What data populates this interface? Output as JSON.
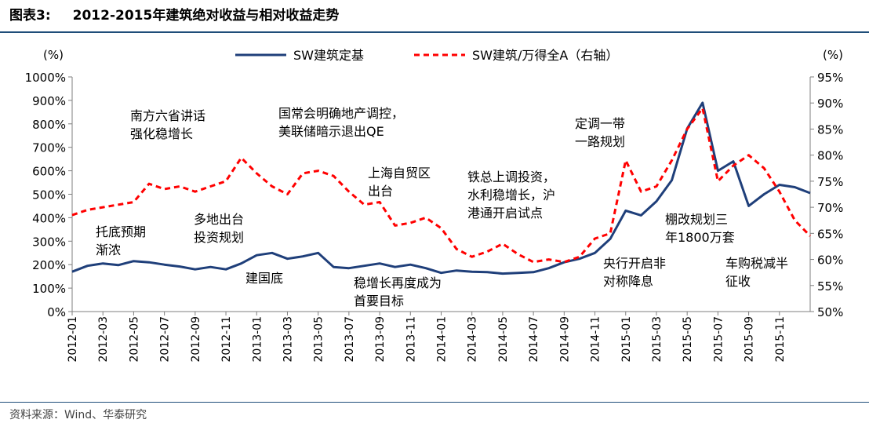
{
  "header": {
    "figure_no": "图表3:",
    "title": "2012-2015年建筑绝对收益与相对收益走势"
  },
  "footer": {
    "source": "资料来源：Wind、华泰研究"
  },
  "colors": {
    "abs_line": "#1f3f7a",
    "rel_line": "#ff0000",
    "rule": "#1f4e79"
  },
  "chart_data": {
    "type": "line",
    "left_unit": "(%)",
    "right_unit": "(%)",
    "left_axis": {
      "ticks": [
        "0%",
        "100%",
        "200%",
        "300%",
        "400%",
        "500%",
        "600%",
        "700%",
        "800%",
        "900%",
        "1000%"
      ],
      "min": 0,
      "max": 1000
    },
    "right_axis": {
      "ticks": [
        "50%",
        "55%",
        "60%",
        "65%",
        "70%",
        "75%",
        "80%",
        "85%",
        "90%",
        "95%"
      ],
      "min": 50,
      "max": 95
    },
    "x_ticks": [
      "2012-01",
      "2012-03",
      "2012-05",
      "2012-07",
      "2012-09",
      "2012-11",
      "2013-01",
      "2013-03",
      "2013-05",
      "2013-07",
      "2013-09",
      "2013-11",
      "2014-01",
      "2014-03",
      "2014-05",
      "2014-07",
      "2014-09",
      "2014-11",
      "2015-01",
      "2015-03",
      "2015-05",
      "2015-07",
      "2015-09",
      "2015-11"
    ],
    "x_range": [
      "2012-01",
      "2016-01"
    ],
    "grid": false,
    "legend_position": "top-center",
    "series": [
      {
        "name": "SW建筑定基",
        "axis": "left",
        "style": "solid",
        "points": [
          [
            "2012-01",
            170
          ],
          [
            "2012-02",
            195
          ],
          [
            "2012-03",
            205
          ],
          [
            "2012-04",
            198
          ],
          [
            "2012-05",
            215
          ],
          [
            "2012-06",
            210
          ],
          [
            "2012-07",
            200
          ],
          [
            "2012-08",
            192
          ],
          [
            "2012-09",
            180
          ],
          [
            "2012-10",
            190
          ],
          [
            "2012-11",
            180
          ],
          [
            "2012-12",
            205
          ],
          [
            "2013-01",
            240
          ],
          [
            "2013-02",
            250
          ],
          [
            "2013-03",
            225
          ],
          [
            "2013-04",
            235
          ],
          [
            "2013-05",
            250
          ],
          [
            "2013-06",
            190
          ],
          [
            "2013-07",
            185
          ],
          [
            "2013-08",
            195
          ],
          [
            "2013-09",
            205
          ],
          [
            "2013-10",
            190
          ],
          [
            "2013-11",
            200
          ],
          [
            "2013-12",
            185
          ],
          [
            "2014-01",
            165
          ],
          [
            "2014-02",
            175
          ],
          [
            "2014-03",
            170
          ],
          [
            "2014-04",
            168
          ],
          [
            "2014-05",
            162
          ],
          [
            "2014-06",
            165
          ],
          [
            "2014-07",
            168
          ],
          [
            "2014-08",
            185
          ],
          [
            "2014-09",
            210
          ],
          [
            "2014-10",
            225
          ],
          [
            "2014-11",
            250
          ],
          [
            "2014-12",
            310
          ],
          [
            "2015-01",
            430
          ],
          [
            "2015-02",
            410
          ],
          [
            "2015-03",
            470
          ],
          [
            "2015-04",
            560
          ],
          [
            "2015-05",
            780
          ],
          [
            "2015-06",
            890
          ],
          [
            "2015-07",
            600
          ],
          [
            "2015-08",
            640
          ],
          [
            "2015-09",
            450
          ],
          [
            "2015-10",
            500
          ],
          [
            "2015-11",
            540
          ],
          [
            "2015-12",
            530
          ],
          [
            "2016-01",
            505
          ]
        ]
      },
      {
        "name": "SW建筑/万得全A（右轴）",
        "axis": "right",
        "style": "dashed",
        "points": [
          [
            "2012-01",
            68.5
          ],
          [
            "2012-02",
            69.5
          ],
          [
            "2012-03",
            70.0
          ],
          [
            "2012-04",
            70.5
          ],
          [
            "2012-05",
            71.0
          ],
          [
            "2012-06",
            74.5
          ],
          [
            "2012-07",
            73.5
          ],
          [
            "2012-08",
            74.0
          ],
          [
            "2012-09",
            73.0
          ],
          [
            "2012-10",
            74.0
          ],
          [
            "2012-11",
            75.0
          ],
          [
            "2012-12",
            79.5
          ],
          [
            "2013-01",
            76.5
          ],
          [
            "2013-02",
            74.0
          ],
          [
            "2013-03",
            72.5
          ],
          [
            "2013-04",
            76.5
          ],
          [
            "2013-05",
            77.0
          ],
          [
            "2013-06",
            76.0
          ],
          [
            "2013-07",
            73.0
          ],
          [
            "2013-08",
            70.5
          ],
          [
            "2013-09",
            71.0
          ],
          [
            "2013-10",
            66.5
          ],
          [
            "2013-11",
            67.0
          ],
          [
            "2013-12",
            68.0
          ],
          [
            "2014-01",
            66.0
          ],
          [
            "2014-02",
            62.0
          ],
          [
            "2014-03",
            60.5
          ],
          [
            "2014-04",
            61.5
          ],
          [
            "2014-05",
            63.0
          ],
          [
            "2014-06",
            61.0
          ],
          [
            "2014-07",
            59.5
          ],
          [
            "2014-08",
            60.0
          ],
          [
            "2014-09",
            59.5
          ],
          [
            "2014-10",
            60.5
          ],
          [
            "2014-11",
            64.0
          ],
          [
            "2014-12",
            65.0
          ],
          [
            "2015-01",
            79.0
          ],
          [
            "2015-02",
            73.0
          ],
          [
            "2015-03",
            74.0
          ],
          [
            "2015-04",
            79.0
          ],
          [
            "2015-05",
            85.0
          ],
          [
            "2015-06",
            89.0
          ],
          [
            "2015-07",
            75.0
          ],
          [
            "2015-08",
            78.0
          ],
          [
            "2015-09",
            80.0
          ],
          [
            "2015-10",
            77.5
          ],
          [
            "2015-11",
            73.0
          ],
          [
            "2015-12",
            67.5
          ],
          [
            "2016-01",
            64.5
          ]
        ]
      }
    ],
    "annotations": [
      {
        "lines": [
          "托底预期",
          "渐浓"
        ]
      },
      {
        "lines": [
          "南方六省讲话",
          "强化稳增长"
        ]
      },
      {
        "lines": [
          "多地出台",
          "投资规划"
        ]
      },
      {
        "lines": [
          "建国底"
        ]
      },
      {
        "lines": [
          "国常会明确地产调控，",
          "美联储暗示退出QE"
        ]
      },
      {
        "lines": [
          "上海自贸区",
          "出台"
        ]
      },
      {
        "lines": [
          "稳增长再度成为",
          "首要目标"
        ]
      },
      {
        "lines": [
          "铁总上调投资，",
          "水利稳增长，沪",
          "港通开启试点"
        ]
      },
      {
        "lines": [
          "定调一带",
          "一路规划"
        ]
      },
      {
        "lines": [
          "央行开启非",
          "对称降息"
        ]
      },
      {
        "lines": [
          "棚改规划三",
          "年1800万套"
        ]
      },
      {
        "lines": [
          "车购税减半",
          "征收"
        ]
      }
    ]
  }
}
